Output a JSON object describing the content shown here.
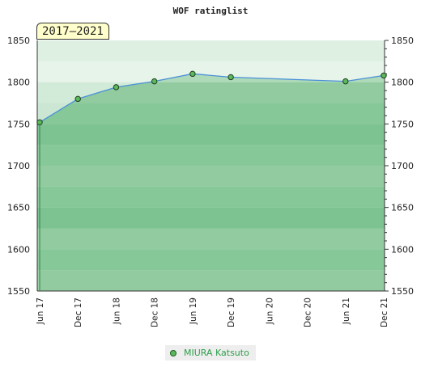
{
  "chart_data": {
    "type": "line",
    "title": "WOF ratinglist",
    "period_label": "2017–2021",
    "x_categories": [
      "Jun 17",
      "Dec 17",
      "Jun 18",
      "Dec 18",
      "Jun 19",
      "Dec 19",
      "Jun 20",
      "Dec 20",
      "Jun 21",
      "Dec 21"
    ],
    "ylim": [
      1550,
      1850
    ],
    "y_ticks": [
      1550,
      1600,
      1650,
      1700,
      1750,
      1800,
      1850
    ],
    "y_axis_both_sides": true,
    "series": [
      {
        "name": "MIURA Katsuto",
        "color": "#4a90d9",
        "fill_color": "#7fc48f",
        "marker_color": "#5cb85c",
        "points": [
          {
            "x": "Jun 17",
            "y": 1752
          },
          {
            "x": "Dec 17",
            "y": 1780
          },
          {
            "x": "Jun 18",
            "y": 1794
          },
          {
            "x": "Dec 18",
            "y": 1801
          },
          {
            "x": "Jun 19",
            "y": 1810
          },
          {
            "x": "Dec 19",
            "y": 1806
          },
          {
            "x": "Jun 21",
            "y": 1801
          },
          {
            "x": "Dec 21",
            "y": 1808
          }
        ]
      }
    ],
    "band_colors": [
      "#9bd0a8",
      "#8ccb9d",
      "#9bd0a8",
      "#7cc393",
      "#8ccb9d",
      "#9bd0a8",
      "#8ccb9d",
      "#7cc393",
      "#8ccb9d",
      "#9bd0a8",
      "#c8e6cf",
      "#b3ddbe"
    ],
    "legend_position": "bottom"
  }
}
